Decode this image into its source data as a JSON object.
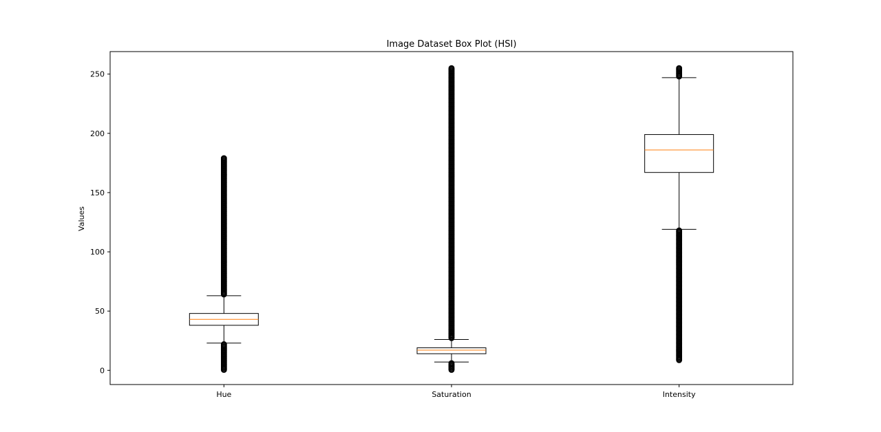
{
  "chart_data": {
    "type": "box",
    "title": "Image Dataset Box Plot (HSI)",
    "xlabel": "",
    "ylabel": "Values",
    "ylim": [
      -12,
      269
    ],
    "yticks": [
      0,
      50,
      100,
      150,
      200,
      250
    ],
    "grid": false,
    "categories": [
      "Hue",
      "Saturation",
      "Intensity"
    ],
    "boxes": [
      {
        "name": "Hue",
        "whisker_low": 23,
        "q1": 38,
        "median": 43,
        "q3": 48,
        "whisker_high": 63,
        "outlier_ranges": [
          [
            0,
            22
          ],
          [
            64,
            179
          ]
        ]
      },
      {
        "name": "Saturation",
        "whisker_low": 7,
        "q1": 14,
        "median": 17,
        "q3": 19,
        "whisker_high": 26,
        "outlier_ranges": [
          [
            0,
            6
          ],
          [
            27,
            255
          ]
        ]
      },
      {
        "name": "Intensity",
        "whisker_low": 119,
        "q1": 167,
        "median": 186,
        "q3": 199,
        "whisker_high": 247,
        "outlier_ranges": [
          [
            8,
            118
          ],
          [
            248,
            255
          ]
        ]
      }
    ],
    "colors": {
      "box": "#000000",
      "median": "#ff7f0e",
      "outlier": "#000000"
    }
  }
}
